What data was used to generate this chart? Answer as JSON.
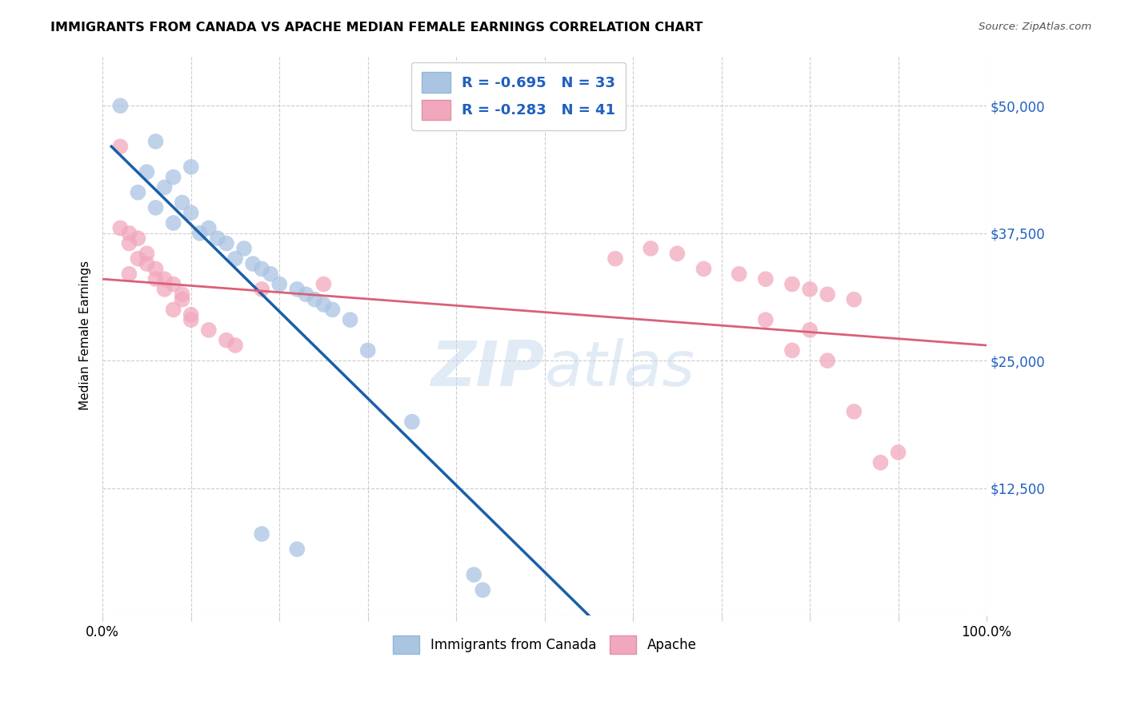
{
  "title": "IMMIGRANTS FROM CANADA VS APACHE MEDIAN FEMALE EARNINGS CORRELATION CHART",
  "source": "Source: ZipAtlas.com",
  "ylabel": "Median Female Earnings",
  "legend1_r": "R = -0.695",
  "legend1_n": "N = 33",
  "legend2_r": "R = -0.283",
  "legend2_n": "N = 41",
  "legend_label1": "Immigrants from Canada",
  "legend_label2": "Apache",
  "blue_color": "#aac4e2",
  "pink_color": "#f2a8bc",
  "blue_line_color": "#1a5fa8",
  "pink_line_color": "#d9607a",
  "blue_scatter": [
    [
      0.002,
      50000
    ],
    [
      0.006,
      46500
    ],
    [
      0.01,
      44000
    ],
    [
      0.005,
      43500
    ],
    [
      0.008,
      43000
    ],
    [
      0.007,
      42000
    ],
    [
      0.004,
      41500
    ],
    [
      0.009,
      40500
    ],
    [
      0.006,
      40000
    ],
    [
      0.01,
      39500
    ],
    [
      0.008,
      38500
    ],
    [
      0.012,
      38000
    ],
    [
      0.011,
      37500
    ],
    [
      0.013,
      37000
    ],
    [
      0.014,
      36500
    ],
    [
      0.016,
      36000
    ],
    [
      0.015,
      35000
    ],
    [
      0.017,
      34500
    ],
    [
      0.018,
      34000
    ],
    [
      0.019,
      33500
    ],
    [
      0.02,
      32500
    ],
    [
      0.022,
      32000
    ],
    [
      0.023,
      31500
    ],
    [
      0.024,
      31000
    ],
    [
      0.025,
      30500
    ],
    [
      0.026,
      30000
    ],
    [
      0.028,
      29000
    ],
    [
      0.03,
      26000
    ],
    [
      0.035,
      19000
    ],
    [
      0.042,
      4000
    ],
    [
      0.043,
      2500
    ],
    [
      0.018,
      8000
    ],
    [
      0.022,
      6500
    ]
  ],
  "pink_scatter": [
    [
      0.002,
      46000
    ],
    [
      0.002,
      38000
    ],
    [
      0.003,
      37500
    ],
    [
      0.004,
      37000
    ],
    [
      0.003,
      36500
    ],
    [
      0.005,
      35500
    ],
    [
      0.004,
      35000
    ],
    [
      0.005,
      34500
    ],
    [
      0.006,
      34000
    ],
    [
      0.003,
      33500
    ],
    [
      0.006,
      33000
    ],
    [
      0.007,
      33000
    ],
    [
      0.008,
      32500
    ],
    [
      0.007,
      32000
    ],
    [
      0.009,
      31500
    ],
    [
      0.009,
      31000
    ],
    [
      0.008,
      30000
    ],
    [
      0.01,
      29500
    ],
    [
      0.01,
      29000
    ],
    [
      0.012,
      28000
    ],
    [
      0.014,
      27000
    ],
    [
      0.015,
      26500
    ],
    [
      0.018,
      32000
    ],
    [
      0.025,
      32500
    ],
    [
      0.058,
      35000
    ],
    [
      0.062,
      36000
    ],
    [
      0.065,
      35500
    ],
    [
      0.068,
      34000
    ],
    [
      0.072,
      33500
    ],
    [
      0.075,
      33000
    ],
    [
      0.078,
      32500
    ],
    [
      0.08,
      32000
    ],
    [
      0.082,
      31500
    ],
    [
      0.085,
      31000
    ],
    [
      0.075,
      29000
    ],
    [
      0.08,
      28000
    ],
    [
      0.078,
      26000
    ],
    [
      0.082,
      25000
    ],
    [
      0.085,
      20000
    ],
    [
      0.09,
      16000
    ],
    [
      0.088,
      15000
    ]
  ],
  "blue_line_x": [
    0.001,
    0.055
  ],
  "blue_line_y": [
    46000,
    0
  ],
  "pink_line_x": [
    0.0,
    0.1
  ],
  "pink_line_y": [
    33000,
    26500
  ],
  "watermark_line1": "ZIP",
  "watermark_line2": "atlas",
  "xlim": [
    0,
    0.1
  ],
  "ylim": [
    0,
    55000
  ],
  "xtick_positions": [
    0.0,
    0.01,
    0.02,
    0.03,
    0.04,
    0.05,
    0.06,
    0.07,
    0.08,
    0.09,
    0.1
  ],
  "ytick_positions": [
    0,
    12500,
    25000,
    37500,
    50000
  ],
  "ytick_labels": [
    "",
    "$12,500",
    "$25,000",
    "$37,500",
    "$50,000"
  ]
}
